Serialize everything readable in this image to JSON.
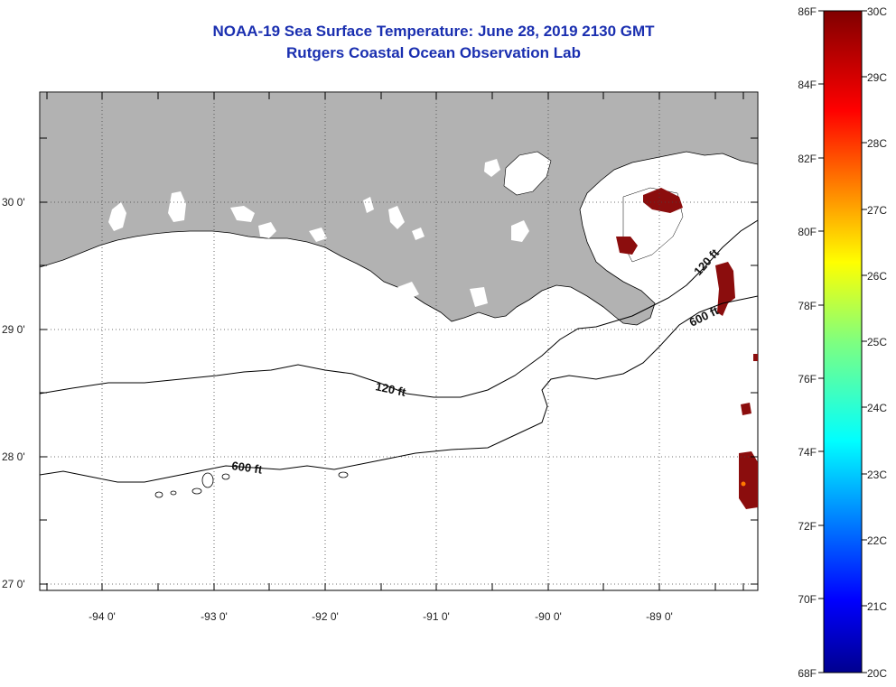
{
  "title": {
    "line1": "NOAA-19 Sea Surface Temperature:  June 28, 2019 2130 GMT",
    "line2": "Rutgers Coastal Ocean Observation Lab"
  },
  "map": {
    "region": "Northern Gulf of Mexico - Louisiana coast",
    "lat_labels": [
      "30 0'",
      "29 0'",
      "28 0'",
      "27 0'"
    ],
    "lon_labels": [
      "-94 0'",
      "-93 0'",
      "-92 0'",
      "-91 0'",
      "-90 0'",
      "-89 0'"
    ],
    "contour_labels": {
      "c120_west": "120 ft",
      "c600_west": "600 ft",
      "c120_east": "120 ft",
      "c600_east": "600 ft"
    },
    "colors": {
      "land": "#b2b2b2",
      "ocean": "#ffffff",
      "hot_sst": "#8b0d0d"
    }
  },
  "colorbar": {
    "fahrenheit": [
      "86F",
      "84F",
      "82F",
      "80F",
      "78F",
      "76F",
      "74F",
      "72F",
      "70F",
      "68F"
    ],
    "celsius": [
      "30C",
      "29C",
      "28C",
      "27C",
      "26C",
      "25C",
      "24C",
      "23C",
      "22C",
      "21C",
      "20C"
    ],
    "range_c": [
      20,
      30
    ],
    "range_f": [
      68,
      86
    ]
  }
}
